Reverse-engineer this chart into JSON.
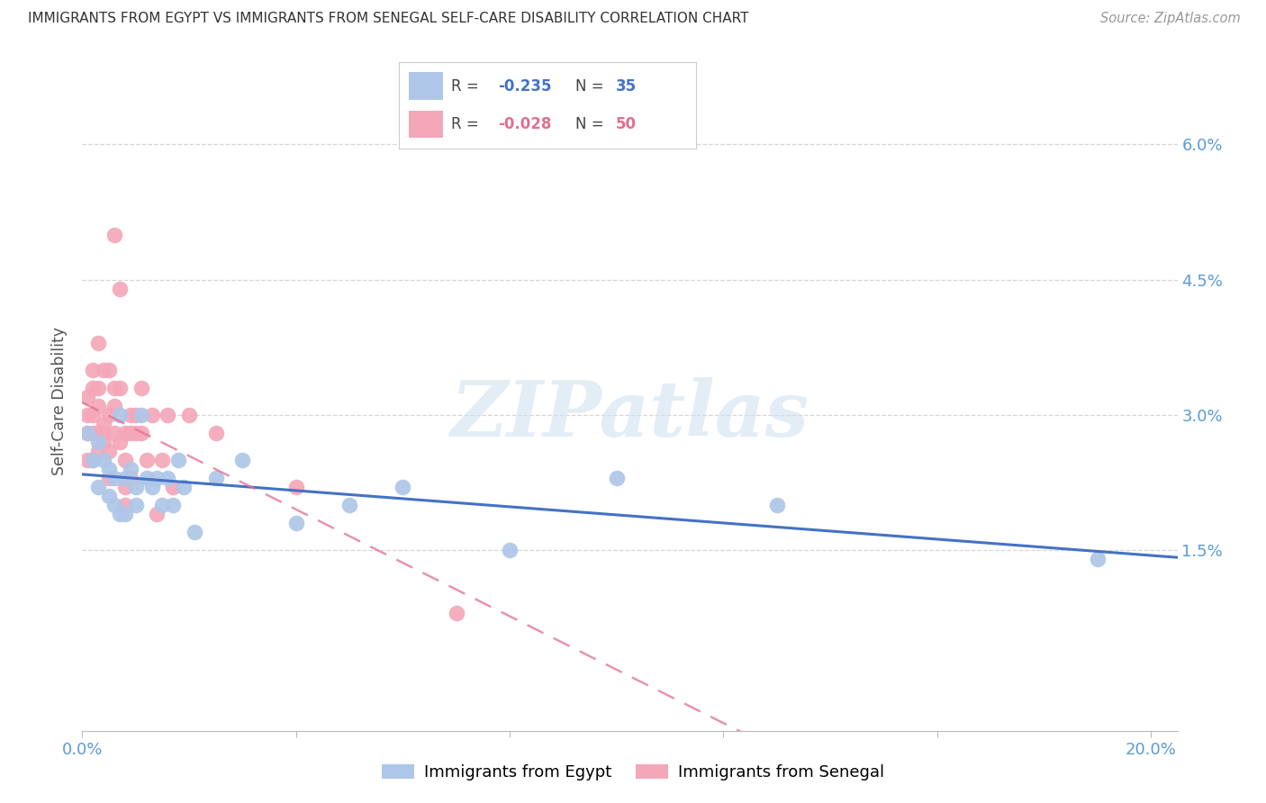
{
  "title": "IMMIGRANTS FROM EGYPT VS IMMIGRANTS FROM SENEGAL SELF-CARE DISABILITY CORRELATION CHART",
  "source": "Source: ZipAtlas.com",
  "ylabel": "Self-Care Disability",
  "xlim": [
    0.0,
    0.205
  ],
  "ylim": [
    -0.005,
    0.068
  ],
  "yticks": [
    0.015,
    0.03,
    0.045,
    0.06
  ],
  "ytick_labels": [
    "1.5%",
    "3.0%",
    "4.5%",
    "6.0%"
  ],
  "xticks": [
    0.0,
    0.04,
    0.08,
    0.12,
    0.16,
    0.2
  ],
  "xtick_labels": [
    "0.0%",
    "",
    "",
    "",
    "",
    "20.0%"
  ],
  "egypt_color": "#aec6e8",
  "senegal_color": "#f4a7b9",
  "egypt_line_color": "#4472c4",
  "senegal_line_color": "#e07090",
  "watermark_text": "ZIPatlas",
  "background_color": "#ffffff",
  "grid_color": "#cccccc",
  "axis_color": "#5b9bd5",
  "title_color": "#333333",
  "source_color": "#999999",
  "egypt_x": [
    0.001,
    0.002,
    0.003,
    0.003,
    0.004,
    0.005,
    0.005,
    0.006,
    0.006,
    0.007,
    0.007,
    0.008,
    0.008,
    0.009,
    0.01,
    0.01,
    0.011,
    0.012,
    0.013,
    0.014,
    0.015,
    0.016,
    0.017,
    0.018,
    0.019,
    0.021,
    0.025,
    0.03,
    0.04,
    0.05,
    0.06,
    0.08,
    0.1,
    0.13,
    0.19
  ],
  "egypt_y": [
    0.028,
    0.025,
    0.027,
    0.022,
    0.025,
    0.024,
    0.021,
    0.023,
    0.02,
    0.03,
    0.019,
    0.023,
    0.019,
    0.024,
    0.022,
    0.02,
    0.03,
    0.023,
    0.022,
    0.023,
    0.02,
    0.023,
    0.02,
    0.025,
    0.022,
    0.017,
    0.023,
    0.025,
    0.018,
    0.02,
    0.022,
    0.015,
    0.023,
    0.02,
    0.014
  ],
  "senegal_x": [
    0.001,
    0.001,
    0.001,
    0.001,
    0.002,
    0.002,
    0.002,
    0.002,
    0.002,
    0.003,
    0.003,
    0.003,
    0.003,
    0.003,
    0.004,
    0.004,
    0.004,
    0.004,
    0.005,
    0.005,
    0.005,
    0.005,
    0.006,
    0.006,
    0.006,
    0.006,
    0.007,
    0.007,
    0.007,
    0.008,
    0.008,
    0.008,
    0.008,
    0.009,
    0.009,
    0.009,
    0.01,
    0.01,
    0.011,
    0.011,
    0.012,
    0.013,
    0.014,
    0.015,
    0.016,
    0.017,
    0.02,
    0.025,
    0.04,
    0.07
  ],
  "senegal_y": [
    0.028,
    0.032,
    0.025,
    0.03,
    0.03,
    0.033,
    0.028,
    0.035,
    0.025,
    0.028,
    0.033,
    0.026,
    0.031,
    0.038,
    0.028,
    0.035,
    0.029,
    0.027,
    0.035,
    0.03,
    0.026,
    0.023,
    0.033,
    0.031,
    0.028,
    0.05,
    0.033,
    0.044,
    0.027,
    0.025,
    0.022,
    0.028,
    0.02,
    0.03,
    0.028,
    0.023,
    0.03,
    0.028,
    0.028,
    0.033,
    0.025,
    0.03,
    0.019,
    0.025,
    0.03,
    0.022,
    0.03,
    0.028,
    0.022,
    0.008
  ],
  "legend_egypt_R": "-0.235",
  "legend_egypt_N": "35",
  "legend_senegal_R": "-0.028",
  "legend_senegal_N": "50",
  "legend_label_egypt": "Immigrants from Egypt",
  "legend_label_senegal": "Immigrants from Senegal"
}
